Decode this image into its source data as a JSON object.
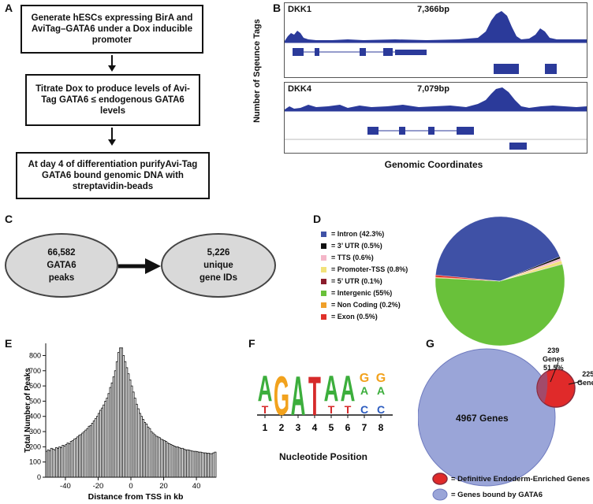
{
  "panels": {
    "A": "A",
    "B": "B",
    "C": "C",
    "D": "D",
    "E": "E",
    "F": "F",
    "G": "G"
  },
  "panel_a": {
    "steps": [
      "Generate hESCs expressing BirA and AviTag–GATA6 under a Dox inducible promoter",
      "Titrate Dox to produce levels of Avi-Tag GATA6 ≤ endogenous GATA6 levels",
      "At day 4 of differentiation purifyAvi-Tag GATA6 bound genomic DNA with streptavidin-beads"
    ]
  },
  "panel_b": {
    "ylabel": "Number of Sqeunce Tags",
    "xlabel": "Genomic Coordinates",
    "tracks": [
      {
        "gene": "DKK1",
        "length": "7,366bp"
      },
      {
        "gene": "DKK4",
        "length": "7,079bp"
      }
    ]
  },
  "panel_c": {
    "left": {
      "line1": "66,582",
      "line2": "GATA6",
      "line3": "peaks"
    },
    "right": {
      "line1": "5,226",
      "line2": "unique",
      "line3": "gene IDs"
    }
  },
  "panel_d": {
    "legend": [
      {
        "label": "= Intron (42.3%)",
        "color": "#3f51a6"
      },
      {
        "label": "= 3’ UTR (0.5%)",
        "color": "#111111"
      },
      {
        "label": "= TTS (0.6%)",
        "color": "#f4b6c8"
      },
      {
        "label": "= Promoter-TSS (0.8%)",
        "color": "#f2e27a"
      },
      {
        "label": "= 5’ UTR (0.1%)",
        "color": "#8b1d2c"
      },
      {
        "label": "= Intergenic (55%)",
        "color": "#69c13a"
      },
      {
        "label": "= Non Coding (0.2%)",
        "color": "#f0a02a"
      },
      {
        "label": "= Exon (0.5%)",
        "color": "#e0302a"
      }
    ]
  },
  "chart_data": [
    {
      "type": "pie",
      "labels": [
        "Intron",
        "3’ UTR",
        "TTS",
        "Promoter-TSS",
        "5’ UTR",
        "Intergenic",
        "Non Coding",
        "Exon"
      ],
      "values": [
        42.3,
        0.5,
        0.6,
        0.8,
        0.1,
        55,
        0.2,
        0.5
      ],
      "colors": [
        "#3f51a6",
        "#111111",
        "#f4b6c8",
        "#f2e27a",
        "#8b1d2c",
        "#69c13a",
        "#f0a02a",
        "#e0302a"
      ]
    },
    {
      "type": "bar",
      "xlabel": "Distance from TSS in kb",
      "ylabel": "Total Number of Peaks",
      "xlim": [
        -52,
        52
      ],
      "xticks": [
        "-40",
        "-20",
        "0",
        "20",
        "40"
      ],
      "xtick_values": [
        -40,
        -20,
        0,
        20,
        40
      ],
      "ylim": [
        0,
        880
      ],
      "yticks": [
        "0",
        "100",
        "200",
        "300",
        "400",
        "500",
        "600",
        "700",
        "800"
      ],
      "ytick_values": [
        0,
        100,
        200,
        300,
        400,
        500,
        600,
        700,
        800
      ],
      "bin_start": -52,
      "bin_width": 1,
      "values": [
        170,
        180,
        175,
        190,
        185,
        180,
        195,
        190,
        200,
        195,
        210,
        205,
        215,
        225,
        220,
        235,
        240,
        250,
        255,
        265,
        275,
        280,
        290,
        300,
        310,
        320,
        335,
        340,
        355,
        370,
        385,
        400,
        420,
        440,
        455,
        475,
        500,
        520,
        550,
        590,
        620,
        660,
        700,
        760,
        820,
        850,
        850,
        800,
        760,
        720,
        680,
        640,
        600,
        560,
        520,
        480,
        450,
        420,
        400,
        380,
        360,
        350,
        330,
        320,
        300,
        290,
        280,
        270,
        265,
        260,
        250,
        245,
        240,
        235,
        225,
        220,
        215,
        210,
        205,
        200,
        200,
        195,
        190,
        190,
        185,
        180,
        180,
        178,
        175,
        172,
        170,
        170,
        168,
        165,
        165,
        162,
        160,
        160,
        158,
        158,
        155,
        155,
        160,
        165
      ]
    },
    {
      "type": "other",
      "title": "motif",
      "xlabel": "Nucleotide Position",
      "positions": [
        "1",
        "2",
        "3",
        "4",
        "5",
        "6",
        "7",
        "8"
      ],
      "sequence": [
        "A/T",
        "G",
        "A",
        "T",
        "A",
        "A/T",
        "G/C/A",
        "G/C/A"
      ]
    },
    {
      "type": "other",
      "title": "venn",
      "big_circle_label": "4967 Genes",
      "overlap_label": [
        "239",
        "Genes",
        "51.5%"
      ],
      "small_only_label": [
        "225",
        "Genes"
      ]
    }
  ],
  "panel_f": {
    "letters_top": [
      "A",
      "G",
      "A",
      "T",
      "A",
      "A",
      "G",
      "G"
    ],
    "letters_bottom": [
      "T",
      "",
      "",
      "",
      "T",
      "T",
      "C",
      "C"
    ],
    "xlabel": "Nucleotide Position",
    "positions": [
      "1",
      "2",
      "3",
      "4",
      "5",
      "6",
      "7",
      "8"
    ]
  },
  "panel_g": {
    "big_label": "4967 Genes",
    "overlap_count": "239",
    "overlap_word": "Genes",
    "overlap_pct": "51.5%",
    "small_count": "225",
    "small_word": "Genes",
    "legend": [
      {
        "label": "= Definitive Endoderm-Enriched Genes",
        "color": "#e0302a"
      },
      {
        "label": "= Genes bound by GATA6",
        "color": "#9aa5d8"
      }
    ]
  }
}
